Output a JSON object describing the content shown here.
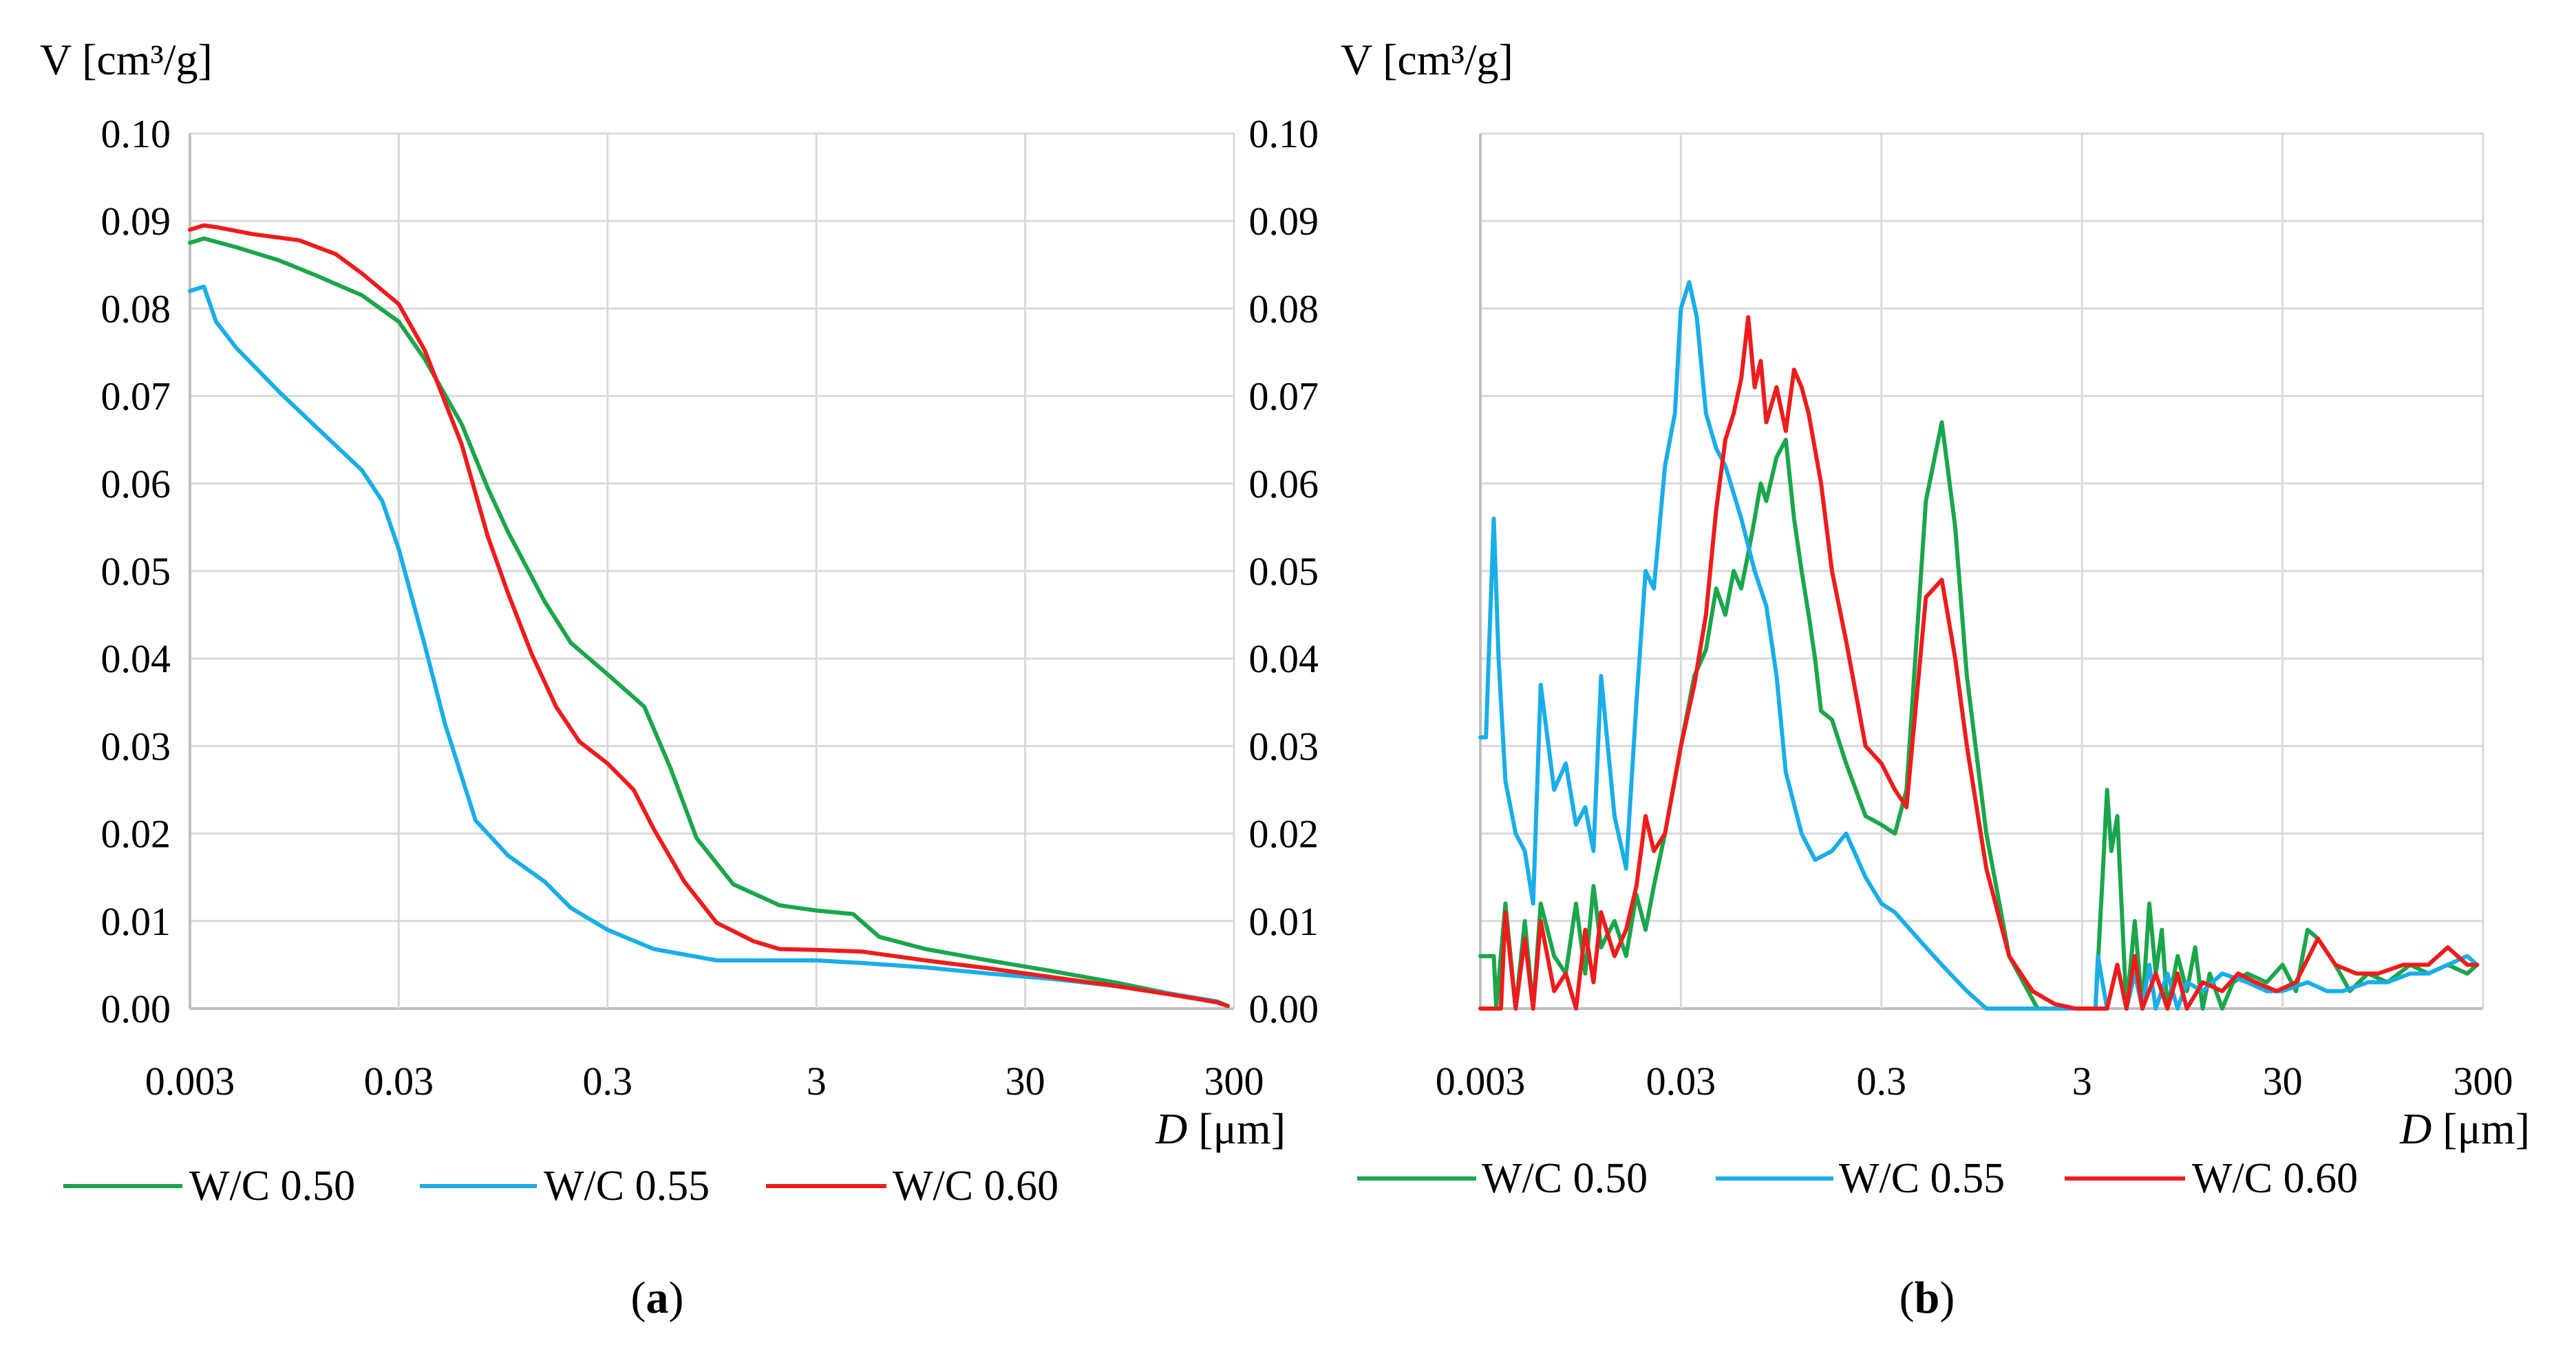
{
  "colors": {
    "W/C 0.50": "#1aa64a",
    "W/C 0.55": "#19aee8",
    "W/C 0.60": "#ee1c1c",
    "grid": "#d9d9d9",
    "axis": "#bfbfbf"
  },
  "chart_data": [
    {
      "panel": "a",
      "caption_text": "a",
      "type": "line",
      "title": "",
      "ylabel_text": "V [cm³/g]",
      "xlabel_symbol": "D",
      "xlabel_unit": "[μm]",
      "x_scale": "log",
      "xlim": [
        0.003,
        300
      ],
      "ylim": [
        0,
        0.1
      ],
      "xticks": [
        "0.003",
        "0.03",
        "0.3",
        "3",
        "30",
        "300"
      ],
      "yticks": [
        "0.00",
        "0.01",
        "0.02",
        "0.03",
        "0.04",
        "0.05",
        "0.06",
        "0.07",
        "0.08",
        "0.09",
        "0.10"
      ],
      "grid": true,
      "legend_position": "bottom",
      "series": [
        {
          "name": "W/C 0.50",
          "x": [
            0.003,
            0.0035,
            0.005,
            0.008,
            0.012,
            0.02,
            0.03,
            0.04,
            0.06,
            0.08,
            0.1,
            0.15,
            0.2,
            0.3,
            0.45,
            0.6,
            0.8,
            1.2,
            2,
            3,
            4.5,
            6,
            10,
            20,
            40,
            80,
            150,
            250,
            280
          ],
          "values": [
            0.0875,
            0.088,
            0.087,
            0.0855,
            0.0838,
            0.0815,
            0.0785,
            0.0742,
            0.0668,
            0.0595,
            0.0545,
            0.0465,
            0.0418,
            0.0382,
            0.0345,
            0.0275,
            0.0195,
            0.0142,
            0.0118,
            0.0112,
            0.0108,
            0.0082,
            0.0068,
            0.0055,
            0.0043,
            0.003,
            0.0017,
            0.0008,
            0.0003
          ]
        },
        {
          "name": "W/C 0.55",
          "x": [
            0.003,
            0.0035,
            0.004,
            0.005,
            0.008,
            0.012,
            0.02,
            0.025,
            0.03,
            0.04,
            0.05,
            0.07,
            0.1,
            0.15,
            0.2,
            0.3,
            0.5,
            1,
            2,
            3,
            5,
            10,
            20,
            40,
            80,
            150,
            250,
            280
          ],
          "values": [
            0.082,
            0.0825,
            0.0785,
            0.0755,
            0.0705,
            0.0665,
            0.0615,
            0.058,
            0.0525,
            0.0415,
            0.0325,
            0.0215,
            0.0175,
            0.0145,
            0.0115,
            0.009,
            0.0068,
            0.0055,
            0.0055,
            0.0055,
            0.0052,
            0.0047,
            0.004,
            0.0034,
            0.0026,
            0.0017,
            0.0008,
            0.0003
          ]
        },
        {
          "name": "W/C 0.60",
          "x": [
            0.003,
            0.0035,
            0.004,
            0.006,
            0.01,
            0.015,
            0.02,
            0.03,
            0.04,
            0.06,
            0.08,
            0.1,
            0.13,
            0.17,
            0.22,
            0.3,
            0.4,
            0.5,
            0.7,
            1,
            1.5,
            2,
            3,
            5,
            10,
            20,
            40,
            80,
            150,
            250,
            280
          ],
          "values": [
            0.089,
            0.0895,
            0.0893,
            0.0885,
            0.0878,
            0.0862,
            0.084,
            0.0805,
            0.0752,
            0.0645,
            0.054,
            0.0475,
            0.0405,
            0.0345,
            0.0305,
            0.028,
            0.025,
            0.0205,
            0.0145,
            0.0098,
            0.0077,
            0.0068,
            0.0067,
            0.0065,
            0.0055,
            0.0046,
            0.0036,
            0.0026,
            0.0016,
            0.0007,
            0.0003
          ]
        }
      ]
    },
    {
      "panel": "b",
      "caption_text": "b",
      "type": "line",
      "title": "",
      "ylabel_text": "V [cm³/g]",
      "xlabel_symbol": "D",
      "xlabel_unit": "[μm]",
      "x_scale": "log",
      "xlim": [
        0.003,
        300
      ],
      "ylim": [
        0,
        0.1
      ],
      "xticks": [
        "0.003",
        "0.03",
        "0.3",
        "3",
        "30",
        "300"
      ],
      "yticks": [
        "0.00",
        "0.01",
        "0.02",
        "0.03",
        "0.04",
        "0.05",
        "0.06",
        "0.07",
        "0.08",
        "0.09",
        "0.10"
      ],
      "grid": true,
      "legend_position": "bottom",
      "series": [
        {
          "name": "W/C 0.50",
          "x": [
            0.003,
            0.0035,
            0.0036,
            0.004,
            0.0045,
            0.005,
            0.0055,
            0.006,
            0.007,
            0.008,
            0.009,
            0.01,
            0.011,
            0.012,
            0.014,
            0.016,
            0.018,
            0.02,
            0.022,
            0.025,
            0.03,
            0.035,
            0.04,
            0.045,
            0.05,
            0.055,
            0.06,
            0.065,
            0.07,
            0.075,
            0.08,
            0.09,
            0.1,
            0.11,
            0.12,
            0.13,
            0.14,
            0.15,
            0.17,
            0.2,
            0.25,
            0.3,
            0.35,
            0.4,
            0.5,
            0.6,
            0.7,
            0.8,
            1.0,
            1.3,
            1.8,
            2.5,
            3.0,
            3.5,
            3.8,
            4.0,
            4.2,
            4.5,
            5.0,
            5.5,
            6,
            6.5,
            7,
            7.5,
            8,
            9,
            10,
            11,
            12,
            13,
            15,
            17,
            20,
            25,
            30,
            35,
            40,
            45,
            55,
            65,
            80,
            100,
            130,
            160,
            200,
            250,
            280
          ],
          "values": [
            0.006,
            0.006,
            0.0,
            0.012,
            0.0,
            0.01,
            0.0,
            0.012,
            0.006,
            0.004,
            0.012,
            0.004,
            0.014,
            0.007,
            0.01,
            0.006,
            0.013,
            0.009,
            0.014,
            0.02,
            0.03,
            0.038,
            0.041,
            0.048,
            0.045,
            0.05,
            0.048,
            0.052,
            0.056,
            0.06,
            0.058,
            0.063,
            0.065,
            0.056,
            0.05,
            0.045,
            0.04,
            0.034,
            0.033,
            0.028,
            0.022,
            0.021,
            0.02,
            0.025,
            0.058,
            0.067,
            0.055,
            0.038,
            0.02,
            0.006,
            0.0,
            0.0,
            0.0,
            0.0,
            0.015,
            0.025,
            0.018,
            0.022,
            0.0,
            0.01,
            0.0,
            0.012,
            0.004,
            0.009,
            0.0,
            0.006,
            0.002,
            0.007,
            0.0,
            0.004,
            0.0,
            0.003,
            0.004,
            0.003,
            0.005,
            0.002,
            0.009,
            0.008,
            0.005,
            0.002,
            0.004,
            0.003,
            0.005,
            0.004,
            0.005,
            0.004,
            0.005
          ]
        },
        {
          "name": "W/C 0.55",
          "x": [
            0.003,
            0.0032,
            0.0033,
            0.0035,
            0.0037,
            0.004,
            0.0045,
            0.005,
            0.0055,
            0.006,
            0.007,
            0.008,
            0.009,
            0.01,
            0.011,
            0.012,
            0.014,
            0.016,
            0.018,
            0.02,
            0.022,
            0.025,
            0.028,
            0.03,
            0.033,
            0.036,
            0.04,
            0.045,
            0.05,
            0.06,
            0.07,
            0.08,
            0.09,
            0.1,
            0.12,
            0.14,
            0.17,
            0.2,
            0.25,
            0.3,
            0.35,
            0.4,
            0.5,
            0.6,
            0.8,
            1.0,
            1.3,
            1.8,
            2.5,
            3.5,
            3.6,
            4.0,
            4.5,
            5,
            5.5,
            6,
            6.5,
            7,
            8,
            9,
            10,
            12,
            15,
            20,
            25,
            30,
            40,
            50,
            60,
            80,
            100,
            130,
            160,
            200,
            250,
            280
          ],
          "values": [
            0.031,
            0.031,
            0.04,
            0.056,
            0.04,
            0.026,
            0.02,
            0.018,
            0.012,
            0.037,
            0.025,
            0.028,
            0.021,
            0.023,
            0.018,
            0.038,
            0.022,
            0.016,
            0.035,
            0.05,
            0.048,
            0.062,
            0.068,
            0.08,
            0.083,
            0.079,
            0.068,
            0.064,
            0.062,
            0.056,
            0.05,
            0.046,
            0.038,
            0.027,
            0.02,
            0.017,
            0.018,
            0.02,
            0.015,
            0.012,
            0.011,
            0.0095,
            0.007,
            0.005,
            0.002,
            0.0,
            0.0,
            0.0,
            0.0,
            0.0,
            0.006,
            0.0,
            0.005,
            0.0,
            0.004,
            0.0,
            0.005,
            0.0,
            0.004,
            0.0,
            0.003,
            0.002,
            0.004,
            0.003,
            0.002,
            0.002,
            0.003,
            0.002,
            0.002,
            0.003,
            0.003,
            0.004,
            0.004,
            0.005,
            0.006,
            0.005
          ]
        },
        {
          "name": "W/C 0.60",
          "x": [
            0.003,
            0.0038,
            0.004,
            0.0045,
            0.005,
            0.0055,
            0.006,
            0.007,
            0.008,
            0.009,
            0.01,
            0.011,
            0.012,
            0.014,
            0.016,
            0.018,
            0.02,
            0.022,
            0.025,
            0.03,
            0.035,
            0.04,
            0.045,
            0.05,
            0.055,
            0.06,
            0.065,
            0.07,
            0.075,
            0.08,
            0.09,
            0.1,
            0.11,
            0.12,
            0.13,
            0.15,
            0.17,
            0.2,
            0.25,
            0.3,
            0.35,
            0.4,
            0.5,
            0.6,
            0.7,
            0.8,
            1.0,
            1.3,
            1.7,
            2.2,
            2.8,
            3.2,
            3.6,
            4.0,
            4.5,
            5,
            5.5,
            6,
            7,
            8,
            9,
            10,
            12,
            15,
            18,
            22,
            28,
            35,
            45,
            55,
            70,
            90,
            120,
            160,
            200,
            250,
            280
          ],
          "values": [
            0.0,
            0.0,
            0.011,
            0.0,
            0.008,
            0.0,
            0.01,
            0.002,
            0.004,
            0.0,
            0.009,
            0.003,
            0.011,
            0.006,
            0.009,
            0.014,
            0.022,
            0.018,
            0.02,
            0.03,
            0.037,
            0.045,
            0.057,
            0.065,
            0.068,
            0.072,
            0.079,
            0.071,
            0.074,
            0.067,
            0.071,
            0.066,
            0.073,
            0.071,
            0.068,
            0.06,
            0.05,
            0.042,
            0.03,
            0.028,
            0.025,
            0.023,
            0.047,
            0.049,
            0.04,
            0.03,
            0.016,
            0.006,
            0.002,
            0.0005,
            0.0,
            0.0,
            0.0,
            0.0,
            0.005,
            0.0,
            0.006,
            0.0,
            0.004,
            0.0,
            0.004,
            0.0,
            0.003,
            0.002,
            0.004,
            0.003,
            0.002,
            0.003,
            0.008,
            0.005,
            0.004,
            0.004,
            0.005,
            0.005,
            0.007,
            0.005,
            0.005
          ]
        }
      ]
    }
  ]
}
